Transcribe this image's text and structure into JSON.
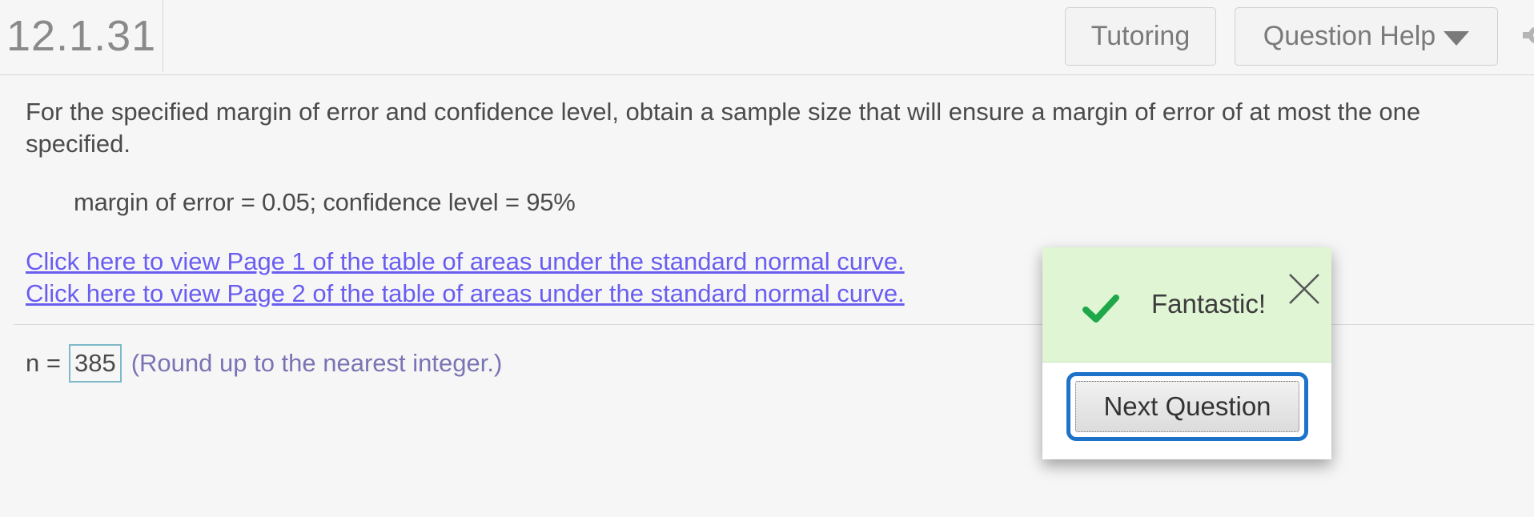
{
  "header": {
    "question_number": "12.1.31",
    "tutoring_label": "Tutoring",
    "question_help_label": "Question Help"
  },
  "question": {
    "prompt": "For the specified margin of error and confidence level, obtain a sample size that will ensure a margin of error of at most the one specified.",
    "given": "margin of error = 0.05; confidence level = 95%",
    "links": [
      "Click here to view Page 1 of the table of areas under the standard normal curve.",
      "Click here to view Page 2 of the table of areas under the standard normal curve."
    ]
  },
  "answer": {
    "label": "n =",
    "value": "385",
    "hint": "(Round up to the nearest integer.)"
  },
  "feedback": {
    "message": "Fantastic!",
    "next_button_label": "Next Question",
    "status_color": "#1fa84a",
    "focus_color": "#1d72c9"
  },
  "icons": {
    "status": "checkmark-icon",
    "close": "close-icon",
    "help_dropdown": "caret-down-icon",
    "settings": "gear-icon"
  }
}
